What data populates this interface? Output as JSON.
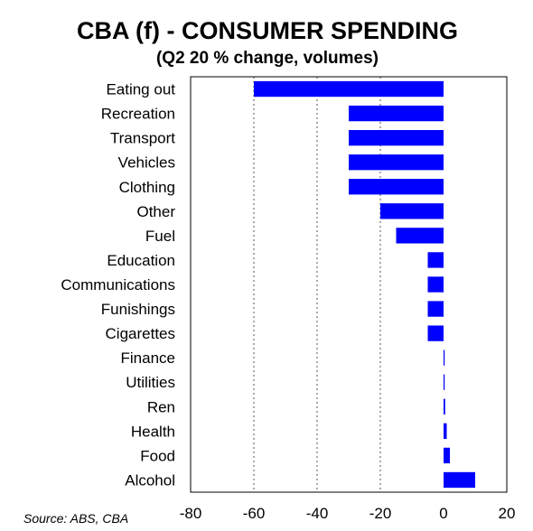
{
  "chart_data": {
    "type": "bar",
    "orientation": "horizontal",
    "title": "CBA (f) - CONSUMER SPENDING",
    "subtitle": "(Q2 20 % change, volumes)",
    "categories": [
      "Eating out",
      "Recreation",
      "Transport",
      "Vehicles",
      "Clothing",
      "Other",
      "Fuel",
      "Education",
      "Communications",
      "Funishings",
      "Cigarettes",
      "Finance",
      "Utilities",
      "Ren",
      "Health",
      "Food",
      "Alcohol"
    ],
    "values": [
      -60,
      -30,
      -30,
      -30,
      -30,
      -20,
      -15,
      -5,
      -5,
      -5,
      -5,
      0.3,
      0.3,
      0.5,
      1,
      2,
      10
    ],
    "xlim": [
      -80,
      20
    ],
    "xticks": [
      -80,
      -60,
      -40,
      -20,
      0,
      20
    ],
    "xtick_labels": [
      "-80",
      "-60",
      "-40",
      "-20",
      "0",
      "20"
    ],
    "gridlines": [
      -60,
      -40,
      -20
    ],
    "grid": "dashed vertical",
    "bar_color": "#0000ff",
    "source": "Source: ABS, CBA"
  }
}
